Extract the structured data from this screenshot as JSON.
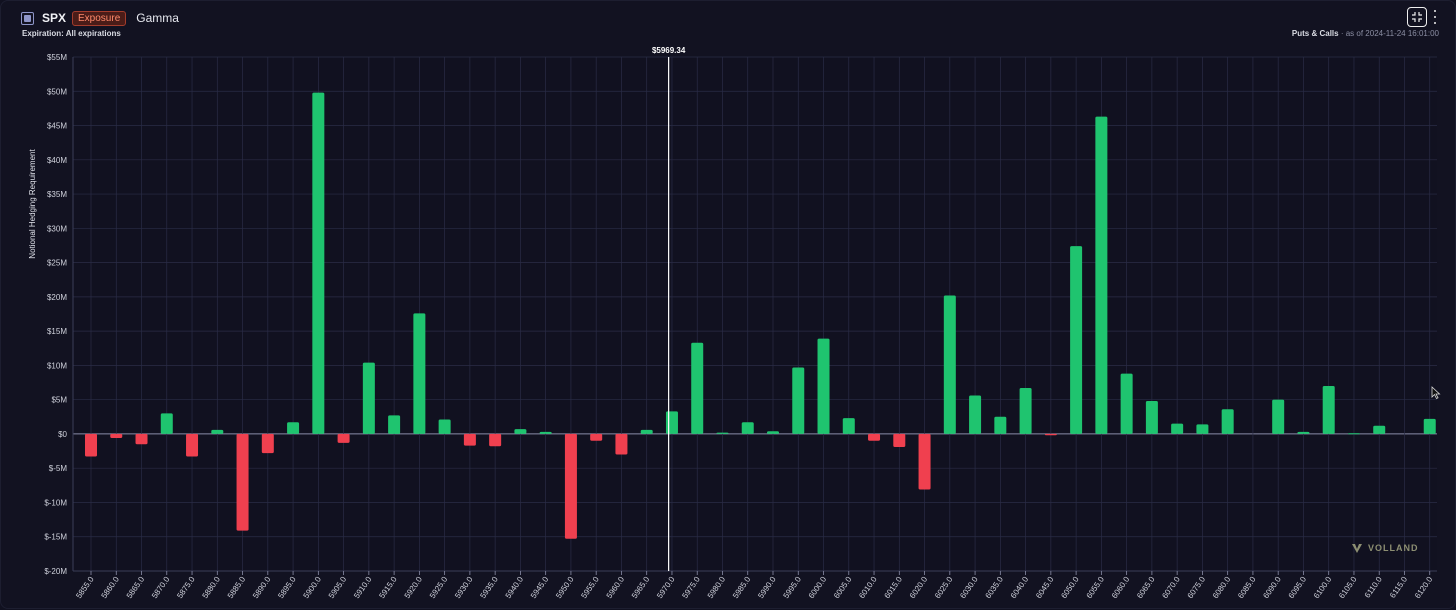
{
  "header": {
    "symbol": "SPX",
    "badge": "Exposure",
    "title": "Gamma",
    "expiration": "Expiration: All expirations",
    "filter": "Puts & Calls",
    "as_of": "as of 2024-11-24 16:01:00"
  },
  "watermark": {
    "text": "VOLLAND"
  },
  "colors": {
    "positive": "#1fc46f",
    "negative": "#f0404f",
    "grid": "#2a2c46",
    "background": "#111120",
    "spot_line": "#ffffff"
  },
  "chart_data": {
    "type": "bar",
    "ylabel": "Notional Hedging Requirement",
    "ylim": [
      -20000000,
      55000000
    ],
    "y_ticks": [
      55000000,
      50000000,
      45000000,
      40000000,
      35000000,
      30000000,
      25000000,
      20000000,
      15000000,
      10000000,
      5000000,
      0,
      -5000000,
      -10000000,
      -15000000,
      -20000000
    ],
    "y_tick_labels": [
      "$55M",
      "$50M",
      "$45M",
      "$40M",
      "$35M",
      "$30M",
      "$25M",
      "$20M",
      "$15M",
      "$10M",
      "$5M",
      "$0",
      "$-5M",
      "$-10M",
      "$-15M",
      "$-20M"
    ],
    "categories": [
      "5855.0",
      "5860.0",
      "5865.0",
      "5870.0",
      "5875.0",
      "5880.0",
      "5885.0",
      "5890.0",
      "5895.0",
      "5900.0",
      "5905.0",
      "5910.0",
      "5915.0",
      "5920.0",
      "5925.0",
      "5930.0",
      "5935.0",
      "5940.0",
      "5945.0",
      "5950.0",
      "5955.0",
      "5960.0",
      "5965.0",
      "5970.0",
      "5975.0",
      "5980.0",
      "5985.0",
      "5990.0",
      "5995.0",
      "6000.0",
      "6005.0",
      "6010.0",
      "6015.0",
      "6020.0",
      "6025.0",
      "6030.0",
      "6035.0",
      "6040.0",
      "6045.0",
      "6050.0",
      "6055.0",
      "6060.0",
      "6065.0",
      "6070.0",
      "6075.0",
      "6080.0",
      "6085.0",
      "6090.0",
      "6095.0",
      "6100.0",
      "6105.0",
      "6110.0",
      "6115.0",
      "6120.0"
    ],
    "values": [
      -3300000,
      -600000,
      -1500000,
      3000000,
      -3300000,
      600000,
      -14100000,
      -2800000,
      1700000,
      49800000,
      -1300000,
      10400000,
      2700000,
      17600000,
      2100000,
      -1700000,
      -1800000,
      700000,
      300000,
      -15300000,
      -1000000,
      -3000000,
      600000,
      3300000,
      13300000,
      200000,
      1700000,
      400000,
      9700000,
      13900000,
      2300000,
      -1000000,
      -1900000,
      -8100000,
      20200000,
      5600000,
      2500000,
      6700000,
      -200000,
      27400000,
      46300000,
      8800000,
      4800000,
      1500000,
      1400000,
      3600000,
      0,
      5000000,
      300000,
      7000000,
      100000,
      1200000,
      0,
      2200000
    ],
    "spot": {
      "label": "$5969.34",
      "value": 5969.34
    },
    "grid": true
  }
}
